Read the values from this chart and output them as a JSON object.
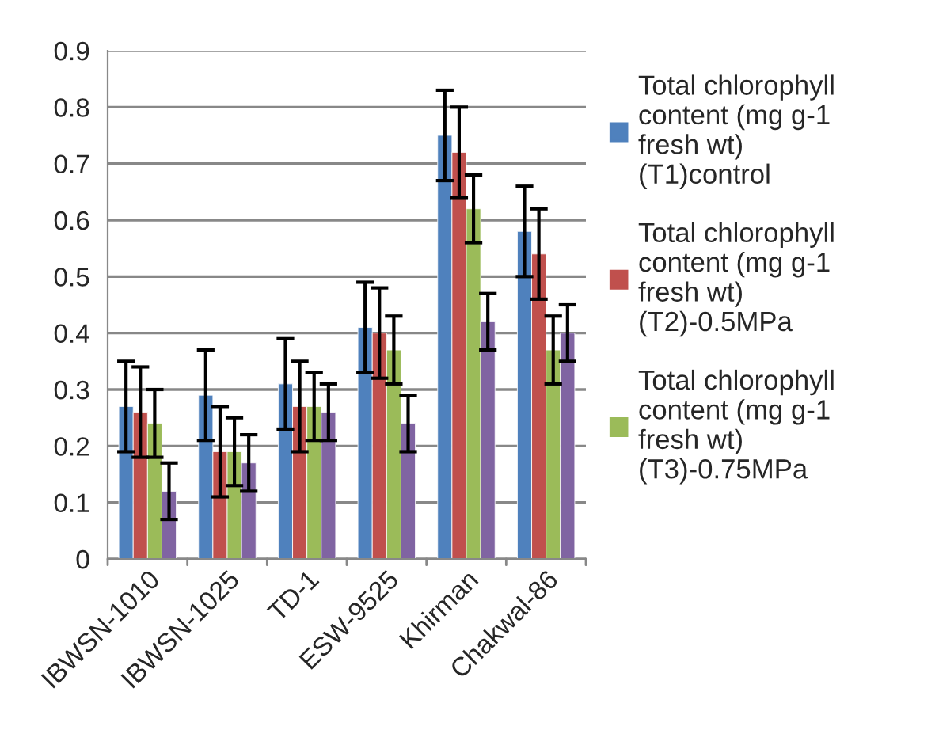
{
  "chart_data": {
    "type": "bar",
    "categories": [
      "IBWSN-1010",
      "IBWSN-1025",
      "TD-1",
      "ESW-9525",
      "Khirman",
      "Chakwal-86"
    ],
    "series": [
      {
        "name": "Total chlorophyll content (mg g-1 fresh wt) (T1)control",
        "color": "#4f81bd",
        "values": [
          0.27,
          0.29,
          0.31,
          0.41,
          0.75,
          0.58
        ],
        "errors": [
          0.08,
          0.08,
          0.08,
          0.08,
          0.08,
          0.08
        ]
      },
      {
        "name": "Total chlorophyll content (mg g-1 fresh wt) (T2)-0.5MPa",
        "color": "#c0504d",
        "values": [
          0.26,
          0.19,
          0.27,
          0.4,
          0.72,
          0.54
        ],
        "errors": [
          0.08,
          0.08,
          0.08,
          0.08,
          0.08,
          0.08
        ]
      },
      {
        "name": "Total chlorophyll content (mg g-1 fresh wt) (T3)-0.75MPa",
        "color": "#9bbb59",
        "values": [
          0.24,
          0.19,
          0.27,
          0.37,
          0.62,
          0.37
        ],
        "errors": [
          0.06,
          0.06,
          0.06,
          0.06,
          0.06,
          0.06
        ]
      },
      {
        "color": "#8064a2",
        "values": [
          0.12,
          0.17,
          0.26,
          0.24,
          0.42,
          0.4
        ],
        "errors": [
          0.05,
          0.05,
          0.05,
          0.05,
          0.05,
          0.05
        ]
      }
    ],
    "ylim": [
      0,
      0.9
    ],
    "yticks": [
      0,
      0.1,
      0.2,
      0.3,
      0.4,
      0.5,
      0.6,
      0.7,
      0.8,
      0.9
    ],
    "grid": "y",
    "legend": "right"
  }
}
